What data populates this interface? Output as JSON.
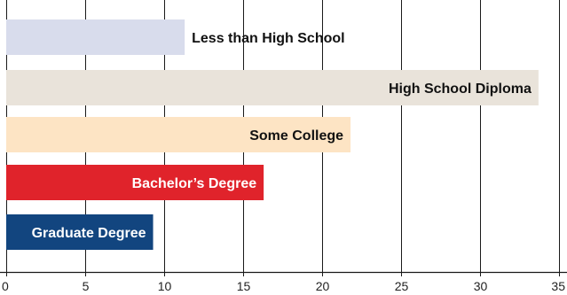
{
  "chart_data": {
    "type": "bar",
    "orientation": "horizontal",
    "title": "",
    "xlabel": "",
    "ylabel": "",
    "xlim": [
      0,
      35
    ],
    "x_ticks": [
      "0",
      "5",
      "10",
      "15",
      "20",
      "25",
      "30",
      "35"
    ],
    "grid": true,
    "legend": "none",
    "bars": [
      {
        "label": "Less than High School",
        "value": 11.3,
        "color": "#d8dcec",
        "label_color": "#111111",
        "label_position": "outside"
      },
      {
        "label": "High School Diploma",
        "value": 33.7,
        "color": "#e9e3da",
        "label_color": "#111111",
        "label_position": "inside"
      },
      {
        "label": "Some College",
        "value": 21.8,
        "color": "#fde4c4",
        "label_color": "#111111",
        "label_position": "inside"
      },
      {
        "label": "Bachelor’s Degree",
        "value": 16.3,
        "color": "#e0232b",
        "label_color": "#ffffff",
        "label_position": "inside"
      },
      {
        "label": "Graduate Degree",
        "value": 9.3,
        "color": "#12457f",
        "label_color": "#ffffff",
        "label_position": "inside"
      }
    ]
  }
}
